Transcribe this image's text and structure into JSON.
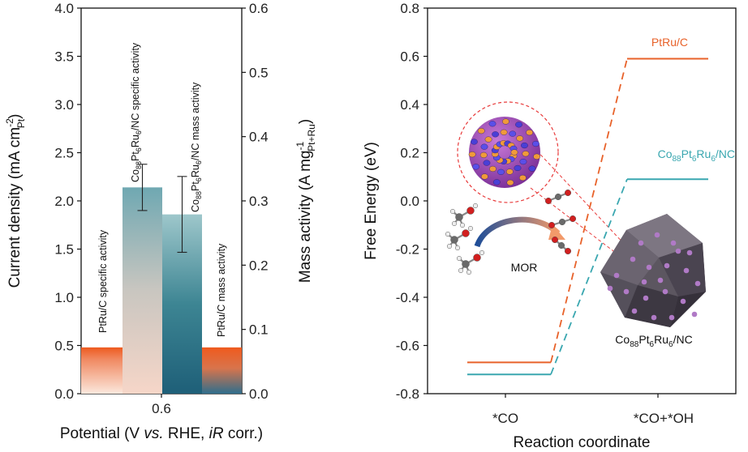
{
  "chart_data": [
    {
      "type": "bar",
      "panel": "left",
      "categories": [
        "0.6"
      ],
      "bars": [
        {
          "name": "PtRu/C specific activity",
          "axis": "left",
          "value": 0.48,
          "error": null
        },
        {
          "name": "Co88Pt6Ru6/NC specific activity",
          "axis": "left",
          "value": 2.14,
          "error": 0.24
        },
        {
          "name": "Co88Pt6Ru6/NC mass activity",
          "axis": "right",
          "value": 0.279,
          "error": 0.059
        },
        {
          "name": "PtRu/C mass activity",
          "axis": "right",
          "value": 0.072,
          "error": null
        }
      ],
      "bar_labels": [
        {
          "base": "PtRu/C specific activity"
        },
        {
          "base": "Co",
          "s1": "88",
          "m1": "Pt",
          "s2": "6",
          "m2": "Ru",
          "s3": "6",
          "tail": "/NC specific activity"
        },
        {
          "base": "Co",
          "s1": "88",
          "m1": "Pt",
          "s2": "6",
          "m2": "Ru",
          "s3": "6",
          "tail": "/NC mass activity"
        },
        {
          "base": "PtRu/C mass activity"
        }
      ],
      "ylim_left": [
        0,
        4.0
      ],
      "ylim_right": [
        0,
        0.6
      ],
      "yticks_left": [
        "0.0",
        "0.5",
        "1.0",
        "1.5",
        "2.0",
        "2.5",
        "3.0",
        "3.5",
        "4.0"
      ],
      "yticks_right": [
        "0.0",
        "0.1",
        "0.2",
        "0.3",
        "0.4",
        "0.5",
        "0.6"
      ],
      "ylabel_left": {
        "base": "Current density (mA cm",
        "sup": "-2",
        "sub": "Pt",
        "tail": ")"
      },
      "ylabel_right": {
        "base": "Mass activity (A mg",
        "sup": "-1",
        "sub": "Pt+Ru",
        "tail": ")"
      },
      "xlabel": {
        "p1": "Potential (V ",
        "i1": "vs.",
        "p2": " RHE, ",
        "i2": "iR",
        "p3": " corr.)"
      }
    },
    {
      "type": "line",
      "panel": "right",
      "categories": [
        "*CO",
        "*CO+*OH"
      ],
      "series": [
        {
          "name": "PtRu/C",
          "color": "#e8622a",
          "values": [
            -0.67,
            0.59
          ]
        },
        {
          "name": "Co88Pt6Ru6/NC",
          "color": "#3aa7b0",
          "values": [
            -0.72,
            0.09
          ]
        }
      ],
      "series_labels": [
        {
          "base": "PtRu/C"
        },
        {
          "base": "Co",
          "s1": "88",
          "m1": "Pt",
          "s2": "6",
          "m2": "Ru",
          "s3": "6",
          "tail": "/NC"
        }
      ],
      "ylim": [
        -0.8,
        0.8
      ],
      "yticks": [
        "-0.8",
        "-0.6",
        "-0.4",
        "-0.2",
        "0.0",
        "0.2",
        "0.4",
        "0.6",
        "0.8"
      ],
      "ylabel": "Free Energy (eV)",
      "xlabel": "Reaction coordinate",
      "annotations": {
        "mor": "MOR",
        "catalyst": {
          "base": "Co",
          "s1": "88",
          "m1": "Pt",
          "s2": "6",
          "m2": "Ru",
          "s3": "6",
          "tail": "/NC"
        }
      }
    }
  ]
}
